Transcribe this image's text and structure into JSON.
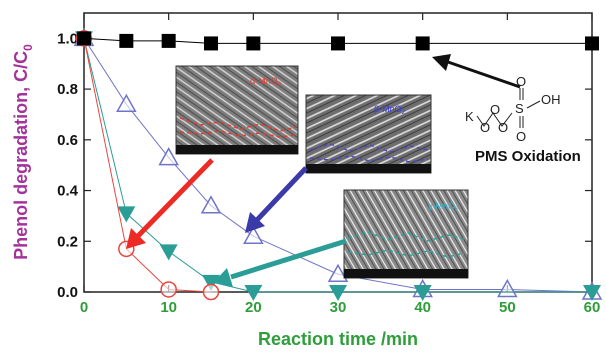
{
  "chart_data": {
    "type": "scatter",
    "xlabel": "Reaction time /min",
    "ylabel": "Phenol degradation, C/C",
    "ylabel_sub": "0",
    "xlim": [
      0,
      60
    ],
    "ylim": [
      0,
      1.1
    ],
    "xticks": [
      "0",
      "10",
      "20",
      "30",
      "40",
      "50",
      "60"
    ],
    "yticks": [
      "0.0",
      "0.2",
      "0.4",
      "0.6",
      "0.8",
      "1.0"
    ],
    "colors": {
      "xaxis": "#2e9e3a",
      "yaxis": "#a3339a",
      "black_series": "#000000",
      "red_series": "#e8463f",
      "blue_series": "#6f74c8",
      "teal_series": "#2a9d96",
      "red_arrow": "#ee2a24",
      "blue_arrow": "#3a3aa8",
      "teal_arrow": "#2a9d96"
    },
    "series": [
      {
        "key": "pms",
        "marker": "square-filled",
        "x": [
          0,
          5,
          10,
          15,
          20,
          30,
          40,
          60
        ],
        "y": [
          1.0,
          0.99,
          0.99,
          0.98,
          0.98,
          0.98,
          0.98,
          0.98
        ]
      },
      {
        "key": "red",
        "marker": "circle-open",
        "x": [
          0,
          5,
          10,
          15
        ],
        "y": [
          1.0,
          0.17,
          0.01,
          0.0
        ]
      },
      {
        "key": "blue",
        "marker": "triangle-up-open",
        "x": [
          0,
          5,
          10,
          15,
          20,
          30,
          40,
          50,
          60
        ],
        "y": [
          1.0,
          0.74,
          0.53,
          0.34,
          0.22,
          0.07,
          0.01,
          0.01,
          0.0
        ]
      },
      {
        "key": "teal",
        "marker": "triangle-down-filled",
        "x": [
          0,
          5,
          10,
          15,
          20,
          30,
          40,
          60
        ],
        "y": [
          1.0,
          0.31,
          0.16,
          0.04,
          0.0,
          0.0,
          0.0,
          0.0
        ]
      }
    ],
    "annotations": {
      "pms_label": "PMS Oxidation",
      "formula": {
        "K": "K",
        "O1": "O",
        "O2": "O",
        "O3": "O",
        "S": "S",
        "OH": "OH",
        "O_top": "O",
        "O_bot": "O"
      },
      "inset_beta": "β-MnO",
      "inset_beta_sub": "2",
      "inset_alpha": "α-MnO",
      "inset_alpha_sub": "2",
      "inset_gamma": "γ-MnO",
      "inset_gamma_sub": "2"
    }
  }
}
